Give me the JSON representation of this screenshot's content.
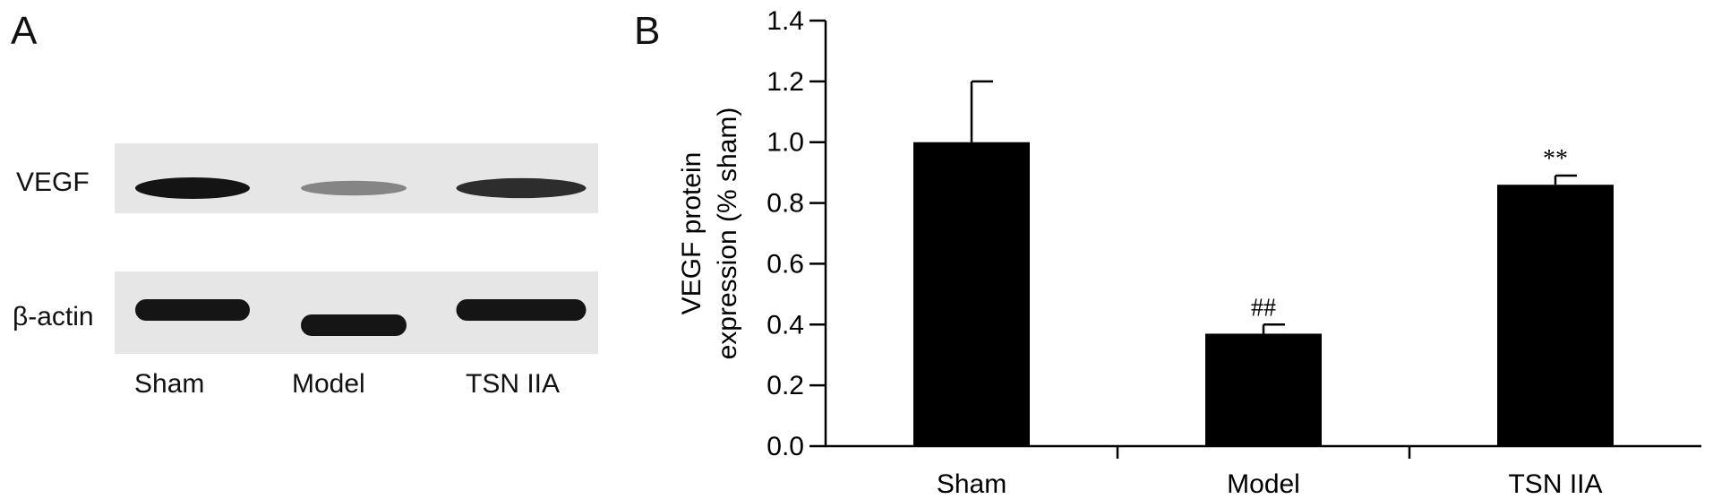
{
  "panels": {
    "a": "A",
    "b": "B"
  },
  "blot": {
    "rows": [
      "VEGF",
      "β-actin"
    ],
    "lanes": [
      "Sham",
      "Model",
      "TSN IIA"
    ],
    "vegf_band_intensity": [
      1.0,
      0.37,
      0.86
    ],
    "actin_band_intensity": [
      1.0,
      1.0,
      1.0
    ]
  },
  "chart_data": {
    "type": "bar",
    "categories": [
      "Sham",
      "Model",
      "TSN IIA"
    ],
    "values": [
      1.0,
      0.37,
      0.86
    ],
    "errors": [
      0.2,
      0.03,
      0.03
    ],
    "annotations": [
      "",
      "##",
      "**"
    ],
    "ylabel_line1": "VEGF protein",
    "ylabel_line2": "expression (% sham)",
    "xlabel": "",
    "ylim": [
      0.0,
      1.4
    ],
    "yticks": [
      "0.0",
      "0.2",
      "0.4",
      "0.6",
      "0.8",
      "1.0",
      "1.2",
      "1.4"
    ],
    "bar_color": "#000000",
    "grid": false
  }
}
